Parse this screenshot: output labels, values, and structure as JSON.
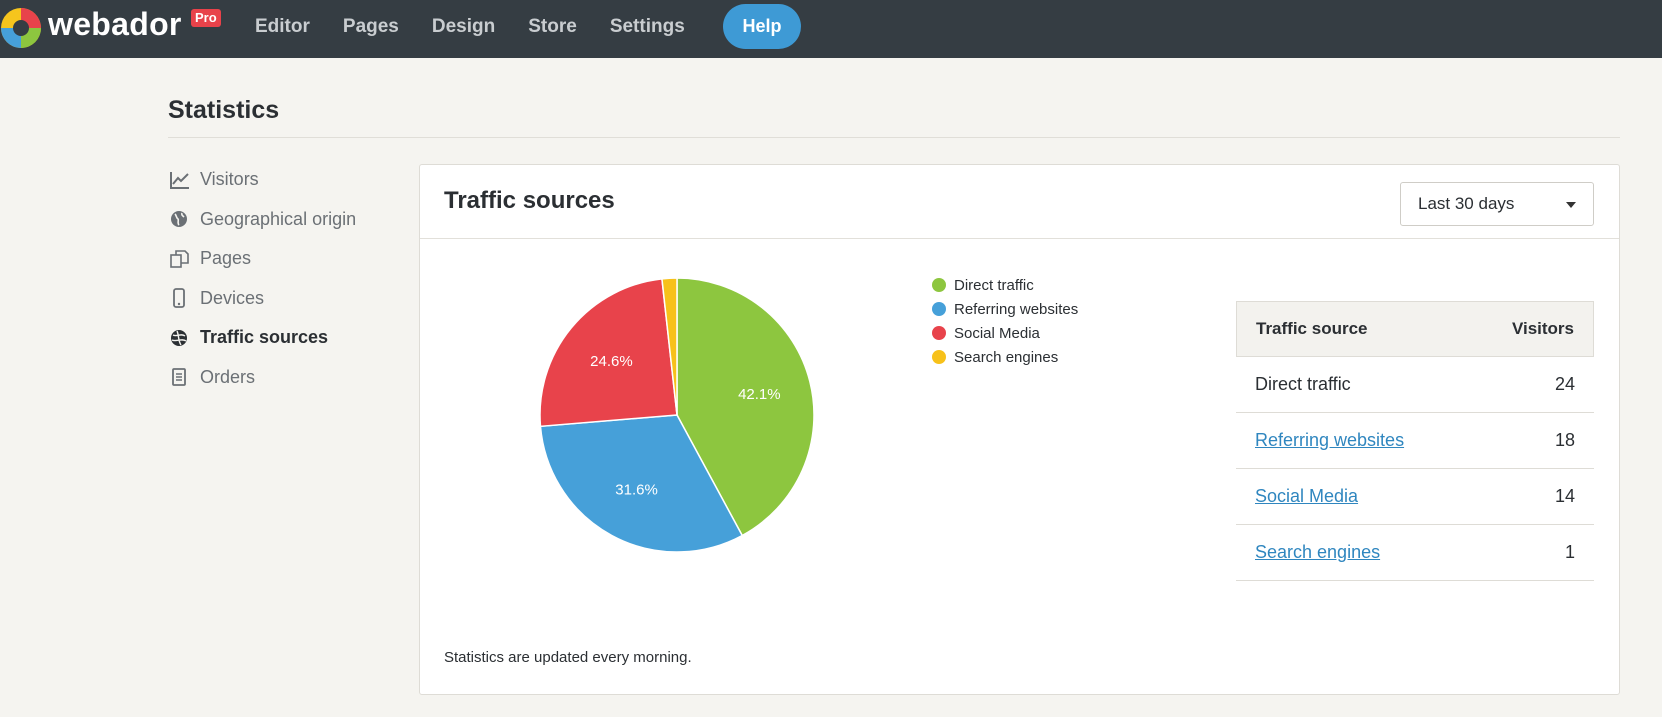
{
  "app": {
    "logo_text": "webador",
    "badge": "Pro",
    "nav": [
      "Editor",
      "Pages",
      "Design",
      "Store",
      "Settings"
    ],
    "help_label": "Help"
  },
  "page": {
    "title": "Statistics"
  },
  "sidebar": {
    "items": [
      {
        "label": "Visitors",
        "icon": "line-chart-icon",
        "active": false
      },
      {
        "label": "Geographical origin",
        "icon": "globe-icon",
        "active": false
      },
      {
        "label": "Pages",
        "icon": "pages-icon",
        "active": false
      },
      {
        "label": "Devices",
        "icon": "mobile-icon",
        "active": false
      },
      {
        "label": "Traffic sources",
        "icon": "traffic-icon",
        "active": true
      },
      {
        "label": "Orders",
        "icon": "receipt-icon",
        "active": false
      }
    ]
  },
  "card": {
    "title": "Traffic sources",
    "range": "Last 30 days",
    "footnote": "Statistics are updated every morning."
  },
  "chart_data": {
    "type": "pie",
    "labels": [
      "Direct traffic",
      "Referring websites",
      "Social Media",
      "Search engines"
    ],
    "values": [
      24,
      18,
      14,
      1
    ],
    "percent_labels": [
      "42.1%",
      "31.6%",
      "24.6%",
      ""
    ],
    "colors": [
      "#8dc63f",
      "#46a0d9",
      "#e8434b",
      "#f7c11a"
    ],
    "legend_position": "right"
  },
  "table": {
    "headers": [
      "Traffic source",
      "Visitors"
    ],
    "rows": [
      {
        "source": "Direct traffic",
        "visitors": "24",
        "link": false
      },
      {
        "source": "Referring websites",
        "visitors": "18",
        "link": true
      },
      {
        "source": "Social Media",
        "visitors": "14",
        "link": true
      },
      {
        "source": "Search engines",
        "visitors": "1",
        "link": true
      }
    ]
  }
}
